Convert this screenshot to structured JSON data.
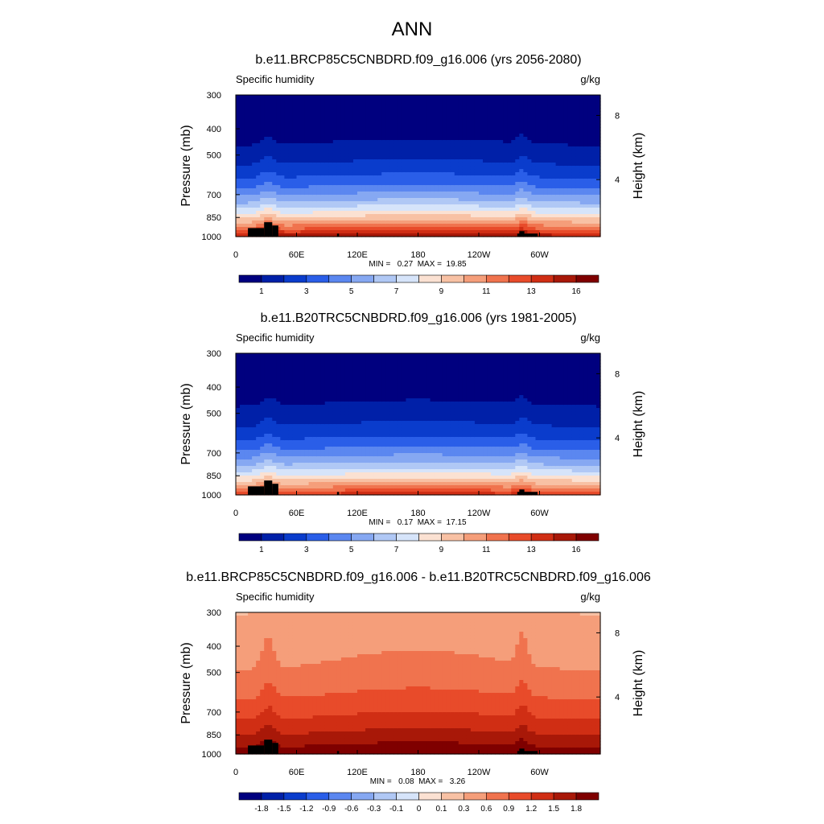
{
  "page_title": "ANN",
  "chart_data": [
    {
      "type": "heatmap",
      "title": "b.e11.BRCP85C5CNBDRD.f09_g16.006 (yrs 2056-2080)",
      "left_label": "Specific humidity",
      "right_label": "g/kg",
      "ylabel": "Pressure (mb)",
      "ylabel_right": "Height (km)",
      "x_ticks": [
        "0",
        "60E",
        "120E",
        "180",
        "120W",
        "60W"
      ],
      "x_tick_values": [
        0,
        60,
        120,
        180,
        240,
        300
      ],
      "xlim": [
        0,
        360
      ],
      "y_ticks": [
        "300",
        "400",
        "500",
        "700",
        "850",
        "1000"
      ],
      "y_tick_values": [
        300,
        400,
        500,
        700,
        850,
        1000
      ],
      "ylim": [
        300,
        1000
      ],
      "right_ticks": [
        "8",
        "4"
      ],
      "right_tick_pressures": [
        357,
        616
      ],
      "stats": "MIN =   0.27  MAX =  19.85",
      "colorbar_labels": [
        "1",
        "3",
        "5",
        "7",
        "9",
        "11",
        "13",
        "16"
      ],
      "colorbar_label_slots": [
        1,
        3,
        5,
        7,
        9,
        11,
        13,
        15
      ],
      "surface_level": 0.0,
      "moisture_scale": 1.0,
      "invert_low_pressure": false
    },
    {
      "type": "heatmap",
      "title": "b.e11.B20TRC5CNBDRD.f09_g16.006 (yrs 1981-2005)",
      "left_label": "Specific humidity",
      "right_label": "g/kg",
      "ylabel": "Pressure (mb)",
      "ylabel_right": "Height (km)",
      "x_ticks": [
        "0",
        "60E",
        "120E",
        "180",
        "120W",
        "60W"
      ],
      "x_tick_values": [
        0,
        60,
        120,
        180,
        240,
        300
      ],
      "xlim": [
        0,
        360
      ],
      "y_ticks": [
        "300",
        "400",
        "500",
        "700",
        "850",
        "1000"
      ],
      "y_tick_values": [
        300,
        400,
        500,
        700,
        850,
        1000
      ],
      "ylim": [
        300,
        1000
      ],
      "right_ticks": [
        "8",
        "4"
      ],
      "right_tick_pressures": [
        357,
        616
      ],
      "stats": "MIN =   0.17  MAX =  17.15",
      "colorbar_labels": [
        "1",
        "3",
        "5",
        "7",
        "9",
        "11",
        "13",
        "16"
      ],
      "colorbar_label_slots": [
        1,
        3,
        5,
        7,
        9,
        11,
        13,
        15
      ],
      "surface_level": 0.0,
      "moisture_scale": 0.9,
      "invert_low_pressure": false
    },
    {
      "type": "heatmap",
      "title": "b.e11.BRCP85C5CNBDRD.f09_g16.006 - b.e11.B20TRC5CNBDRD.f09_g16.006",
      "left_label": "Specific humidity",
      "right_label": "g/kg",
      "ylabel": "Pressure (mb)",
      "ylabel_right": "Height (km)",
      "x_ticks": [
        "0",
        "60E",
        "120E",
        "180",
        "120W",
        "60W"
      ],
      "x_tick_values": [
        0,
        60,
        120,
        180,
        240,
        300
      ],
      "xlim": [
        0,
        360
      ],
      "y_ticks": [
        "300",
        "400",
        "500",
        "700",
        "850",
        "1000"
      ],
      "y_tick_values": [
        300,
        400,
        500,
        700,
        850,
        1000
      ],
      "ylim": [
        300,
        1000
      ],
      "right_ticks": [
        "8",
        "4"
      ],
      "right_tick_pressures": [
        357,
        616
      ],
      "stats": "MIN =   0.08  MAX =   3.26",
      "colorbar_labels": [
        "-1.8",
        "-1.5",
        "-1.2",
        "-0.9",
        "-0.6",
        "-0.3",
        "-0.1",
        "0",
        "0.1",
        "0.3",
        "0.6",
        "0.9",
        "1.2",
        "1.5",
        "1.8"
      ],
      "colorbar_label_slots": [
        1,
        2,
        3,
        4,
        5,
        6,
        7,
        8,
        9,
        10,
        11,
        12,
        13,
        14,
        15
      ],
      "surface_level": 0.0,
      "moisture_scale": 1.0,
      "invert_low_pressure": true
    }
  ],
  "colorbar_colors": [
    "#00007f",
    "#0020a8",
    "#0a3ccc",
    "#2a5ee8",
    "#5b87f0",
    "#86a8f2",
    "#b0c8f5",
    "#d6e4fa",
    "#fbe1d2",
    "#f8c1a4",
    "#f59e7a",
    "#f0734e",
    "#e84b2a",
    "#d02e14",
    "#a81808",
    "#7f0000"
  ]
}
